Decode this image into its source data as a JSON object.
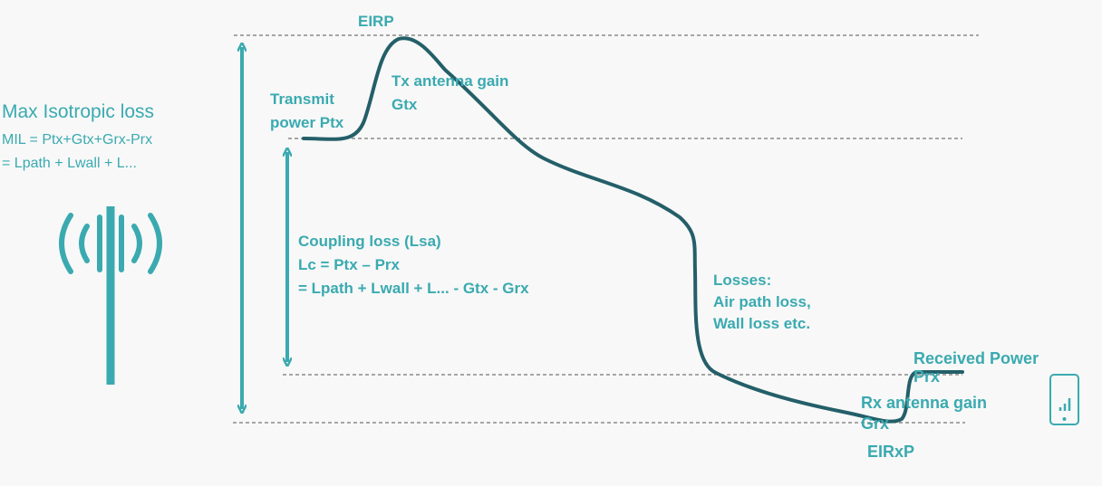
{
  "colors": {
    "accent": "#3aaab0",
    "curve": "#245f69",
    "dashed": "#555555",
    "background": "#f8f8f8"
  },
  "icons": {
    "antenna": "antenna-tower-icon",
    "phone": "phone-signal-icon"
  },
  "mil": {
    "title": "Max Isotropic loss",
    "line1": "MIL = Ptx+Gtx+Grx-Prx",
    "line2": "= Lpath + Lwall + L..."
  },
  "labels": {
    "eirp": "EIRP",
    "tx_gain_1": "Tx antenna gain",
    "tx_gain_2": "Gtx",
    "transmit_1": "Transmit",
    "transmit_2": "power Ptx",
    "coupling_1": "Coupling loss (Lsa)",
    "coupling_2": "Lc = Ptx – Prx",
    "coupling_3": "= Lpath + Lwall + L... - Gtx - Grx",
    "losses_1": "Losses:",
    "losses_2": "Air path loss,",
    "losses_3": "Wall loss etc.",
    "received_1": "Received Power",
    "received_2": "Prx",
    "rx_gain_1": "Rx antenna gain",
    "rx_gain_2": "Grx",
    "eirxp": "EIRxP"
  }
}
